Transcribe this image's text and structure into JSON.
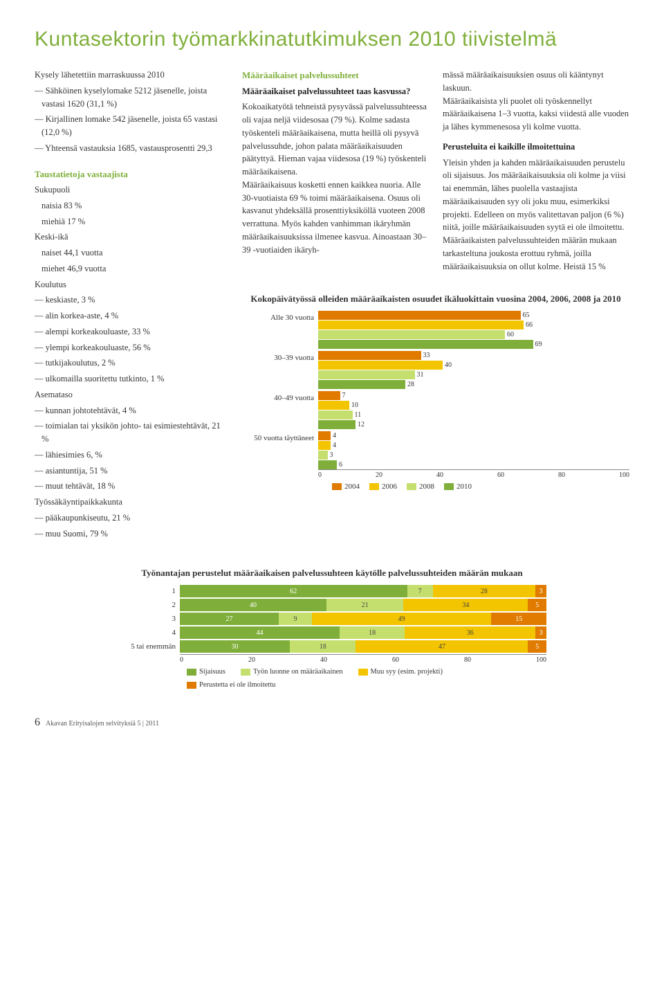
{
  "title": "Kuntasektorin työmarkkinatutkimuksen 2010 tiivistelmä",
  "col1": {
    "intro": [
      "Kysely lähetettiin marraskuussa 2010",
      "— Sähköinen kyselylomake 5212 jäsenelle, joista vastasi 1620 (31,1 %)",
      "— Kirjallinen lomake 542 jäsenelle, joista 65 vastasi (12,0 %)",
      "— Yhteensä vastauksia 1685, vastausprosentti 29,3"
    ],
    "section_title": "Taustatietoja vastaajista",
    "sukupuoli_h": "Sukupuoli",
    "sukupuoli": [
      "naisia 83 %",
      "miehiä 17 %"
    ],
    "keski_h": "Keski-ikä",
    "keski": [
      "naiset 44,1 vuotta",
      "miehet 46,9 vuotta"
    ],
    "koulutus_h": "Koulutus",
    "koulutus": [
      "— keskiaste, 3 %",
      "— alin korkea-aste, 4 %",
      "— alempi korkeakouluaste, 33 %",
      "— ylempi korkeakouluaste, 56 %",
      "— tutkijakoulutus, 2 %",
      "— ulkomailla suoritettu tutkinto, 1 %"
    ],
    "asemataso_h": "Asemataso",
    "asemataso": [
      "— kunnan johtotehtävät, 4 %",
      "— toimialan tai yksikön johto- tai esimiestehtävät, 21 %",
      "— lähiesimies 6, %",
      "— asiantuntija, 51 %",
      "— muut tehtävät, 18 %"
    ],
    "tyossa_h": "Työssäkäyntipaikkakunta",
    "tyossa": [
      "— pääkaupunkiseutu, 21 %",
      "— muu Suomi, 79 %"
    ]
  },
  "col2": {
    "head1": "Määräaikaiset palvelussuhteet",
    "head2": "Määräaikaiset palvelussuhteet taas kasvussa?",
    "body": "Kokoaikatyötä tehneistä pysyvässä palvelussuhteessa oli vajaa neljä viidesosaa (79 %). Kolme sadasta työskenteli määräaikaisena, mutta heillä oli pysyvä palvelussuhde, johon palata määräaikaisuuden päätyttyä. Hieman vajaa viidesosa (19 %) työskenteli määräaikaisena.\n    Määräaikaisuus kosketti ennen kaikkea nuoria. Alle 30-vuotiaista 69 % toimi määräaikaisena. Osuus oli kasvanut yhdeksällä prosenttiyksiköllä vuoteen 2008 verrattuna. Myös kahden vanhimman ikäryhmän määräaikaisuuksissa ilmenee kasvua. Ainoastaan 30–39 -vuotiaiden ikäryh-"
  },
  "col3": {
    "p1": "mässä määräaikaisuuksien osuus oli kääntynyt laskuun.\n    Määräaikaisista yli puolet oli työskennellyt määräaikaisena 1–3 vuotta, kaksi viidestä alle vuoden ja lähes kymmenesosa yli kolme vuotta.",
    "head": "Perusteluita ei kaikille ilmoitettuina",
    "p2": "Yleisin yhden ja kahden määräaikaisuuden perustelu oli sijaisuus. Jos määräaikaisuuksia oli kolme ja viisi tai enemmän, lähes puolella vastaajista määräaikaisuuden syy oli joku muu, esimerkiksi projekti. Edelleen on myös valitettavan paljon (6 %) niitä, joille määräaikaisuuden syytä ei ole ilmoitettu. Määräaikaisten palvelussuhteiden määrän mukaan tarkasteltuna joukosta erottuu ryhmä, joilla määräaikaisuuksia on ollut kolme. Heistä 15 %"
  },
  "chart1": {
    "title": "Kokopäivätyössä olleiden määräaikaisten osuudet ikäluokittain vuosina 2004, 2006, 2008 ja 2010",
    "categories": [
      "Alle 30 vuotta",
      "30–39 vuotta",
      "40–49 vuotta",
      "50 vuotta täyttäneet"
    ],
    "series": [
      "2004",
      "2006",
      "2008",
      "2010"
    ],
    "colors": [
      "#e07b00",
      "#f3c400",
      "#c5df6f",
      "#7faf3a"
    ],
    "data": [
      [
        65,
        66,
        60,
        69
      ],
      [
        33,
        40,
        31,
        28
      ],
      [
        7,
        10,
        11,
        12
      ],
      [
        4,
        4,
        3,
        6
      ]
    ],
    "axis": [
      0,
      20,
      40,
      60,
      80,
      100
    ]
  },
  "chart2": {
    "title": "Työnantajan perustelut määräaikaisen palvelussuhteen käytölle palvelussuhteiden määrän mukaan",
    "rows": [
      "1",
      "2",
      "3",
      "4",
      "5 tai enemmän"
    ],
    "segments": [
      "Sijaisuus",
      "Työn luonne on määräaikainen",
      "Muu syy (esim. projekti)",
      "Perustetta ei ole ilmoitettu"
    ],
    "colors": [
      "#7faf3a",
      "#c5df6f",
      "#f3c400",
      "#e07b00"
    ],
    "data": [
      [
        62,
        7,
        28,
        3
      ],
      [
        40,
        21,
        34,
        5
      ],
      [
        27,
        9,
        49,
        15
      ],
      [
        44,
        18,
        36,
        3
      ],
      [
        30,
        18,
        47,
        5
      ]
    ],
    "axis": [
      0,
      20,
      40,
      60,
      80,
      100
    ]
  },
  "footer": {
    "page_num": "6",
    "text": "Akavan Erityisalojen selvityksiä 5 | 2011"
  }
}
